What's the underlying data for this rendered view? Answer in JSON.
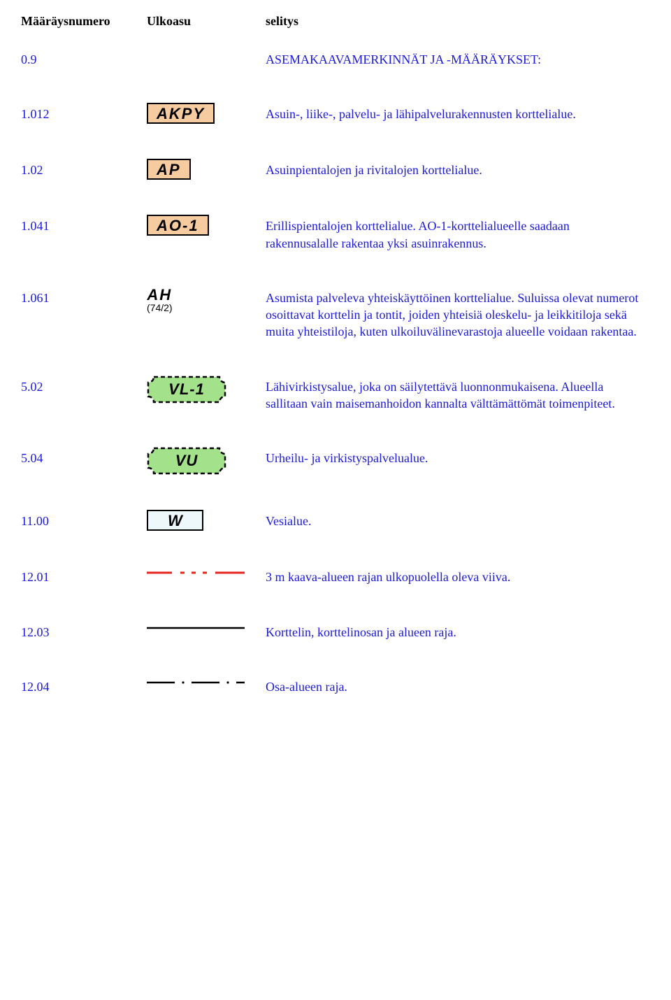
{
  "header": {
    "col1": "Määräysnumero",
    "col2": "Ulkoasu",
    "col3": "selitys"
  },
  "rows": [
    {
      "num": "0.9",
      "sym": "none",
      "label": "",
      "desc": "ASEMAKAAVAMERKINNÄT JA -MÄÄRÄYKSET:"
    },
    {
      "num": "1.012",
      "sym": "box",
      "label": "AKPY",
      "desc": "Asuin-, liike-, palvelu- ja lähipalvelurakennusten korttelialue."
    },
    {
      "num": "1.02",
      "sym": "box",
      "label": "AP",
      "desc": "Asuinpientalojen ja rivitalojen korttelialue."
    },
    {
      "num": "1.041",
      "sym": "box",
      "label": "AO-1",
      "desc": "Erillispientalojen korttelialue. AO-1-korttelialueelle saadaan rakennusalalle rakentaa yksi asuinrakennus."
    },
    {
      "num": "1.061",
      "sym": "ah",
      "label": "AH",
      "sub": "(74/2)",
      "desc": "Asumista palveleva yhteiskäyttöinen korttelialue. Suluissa olevat numerot osoittavat korttelin ja tontit, joiden yhteisiä oleskelu- ja leikkitiloja sekä muita yhteistiloja, kuten ulkoiluvälinevarastoja alueelle voidaan rakentaa."
    },
    {
      "num": "5.02",
      "sym": "green",
      "label": "VL-1",
      "desc": "Lähivirkistysalue, joka on säilytettävä luonnonmukaisena. Alueella sallitaan vain maisemanhoidon kannalta välttämättömät toimenpiteet."
    },
    {
      "num": "5.04",
      "sym": "green",
      "label": "VU",
      "desc": "Urheilu- ja virkistyspalvelualue."
    },
    {
      "num": "11.00",
      "sym": "w",
      "label": "W",
      "desc": "Vesialue."
    },
    {
      "num": "12.01",
      "sym": "line-red-dashdot",
      "desc": "3 m kaava-alueen rajan ulkopuolella oleva viiva."
    },
    {
      "num": "12.03",
      "sym": "line-black-solid",
      "desc": "Korttelin, korttelinosan ja alueen raja."
    },
    {
      "num": "12.04",
      "sym": "line-black-dashdot",
      "desc": "Osa-alueen raja."
    }
  ],
  "colors": {
    "link_blue": "#1a1ad6",
    "box_fill": "#f7cba0",
    "green_fill": "#a3e28b",
    "w_fill": "#eef7f9",
    "red": "#e3251f"
  }
}
